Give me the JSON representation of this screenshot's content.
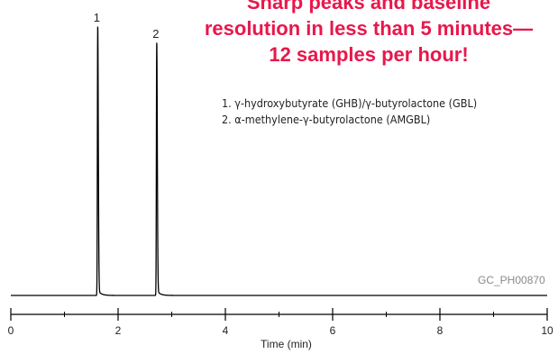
{
  "headline": {
    "line1": "Sharp peaks and baseline",
    "line2": "resolution in less than 5 minutes—",
    "line3": "12 samples per hour!",
    "color": "#e8174b"
  },
  "legend": {
    "items": [
      "1. γ-hydroxybutyrate (GHB)/γ-butyrolactone (GBL)",
      "2. α-methylene-γ-butyrolactone (AMGBL)"
    ]
  },
  "figure_code": "GC_PH00870",
  "chart_data": {
    "type": "line",
    "xlabel": "Time (min)",
    "xlim": [
      0,
      10
    ],
    "xticks": [
      0,
      2,
      4,
      6,
      8,
      10
    ],
    "xtick_labels": [
      "0",
      "2",
      "4",
      "6",
      "8",
      "10"
    ],
    "minor_ticks": [
      1,
      3,
      5,
      7,
      9
    ],
    "peaks": [
      {
        "label": "1",
        "retention_time": 1.62,
        "relative_height": 1.0
      },
      {
        "label": "2",
        "retention_time": 2.72,
        "relative_height": 0.94
      }
    ]
  }
}
